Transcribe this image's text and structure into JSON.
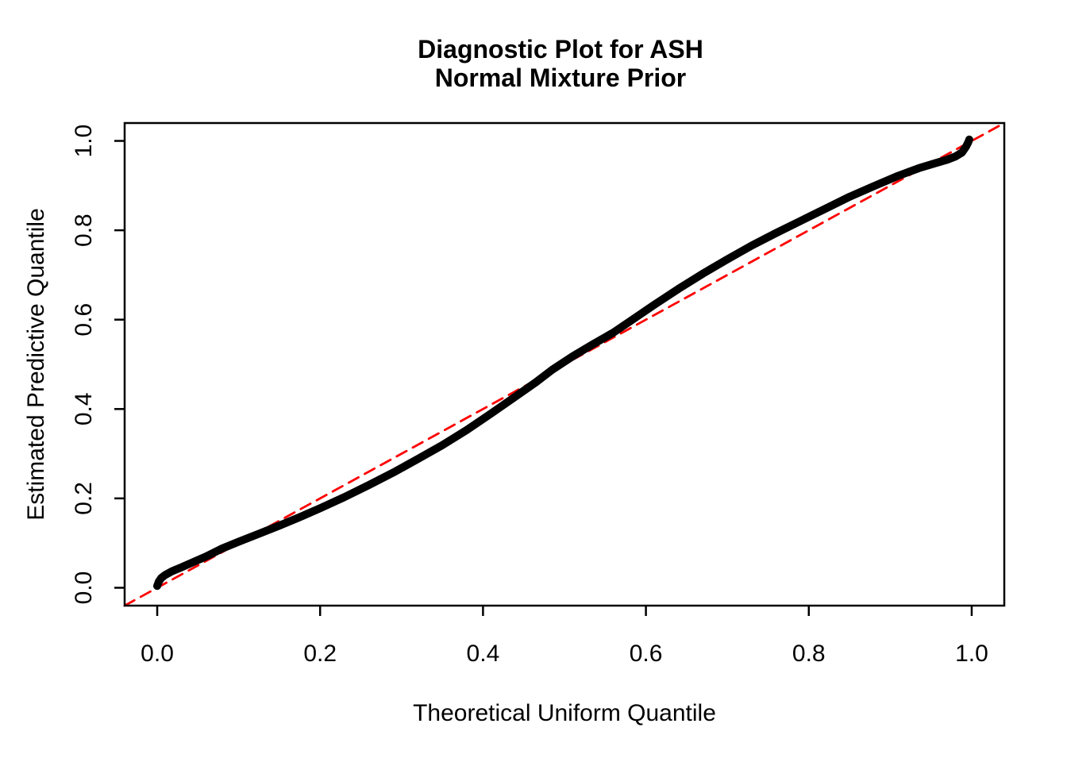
{
  "title": {
    "line1": "Diagnostic Plot for ASH",
    "line2": "Normal Mixture Prior"
  },
  "axes": {
    "x_label": "Theoretical Uniform Quantile",
    "y_label": "Estimated Predictive Quantile",
    "x_tick_labels": [
      "0.0",
      "0.2",
      "0.4",
      "0.6",
      "0.8",
      "1.0"
    ],
    "y_tick_labels": [
      "0.0",
      "0.2",
      "0.4",
      "0.6",
      "0.8",
      "1.0"
    ]
  },
  "colors": {
    "curve": "#000000",
    "reference_line": "#FF0000",
    "background": "#FFFFFF",
    "text": "#000000",
    "frame": "#000000"
  },
  "chart_data": {
    "type": "line",
    "title": "Diagnostic Plot for ASH\nNormal Mixture Prior",
    "xlabel": "Theoretical Uniform Quantile",
    "ylabel": "Estimated Predictive Quantile",
    "xlim": [
      -0.04,
      1.04
    ],
    "ylim": [
      -0.04,
      1.04
    ],
    "x_ticks": [
      0,
      0.2,
      0.4,
      0.6,
      0.8,
      1.0
    ],
    "y_ticks": [
      0,
      0.2,
      0.4,
      0.6,
      0.8,
      1.0
    ],
    "grid": false,
    "legend": false,
    "series": [
      {
        "name": "estimated predictive quantile vs theoretical uniform quantile (Q-Q curve)",
        "type": "line",
        "color": "#000000",
        "line_width": 10,
        "dash": null,
        "points": [
          [
            0.0,
            0.004
          ],
          [
            0.002,
            0.014
          ],
          [
            0.005,
            0.022
          ],
          [
            0.01,
            0.029
          ],
          [
            0.018,
            0.037
          ],
          [
            0.03,
            0.046
          ],
          [
            0.045,
            0.058
          ],
          [
            0.06,
            0.07
          ],
          [
            0.08,
            0.088
          ],
          [
            0.1,
            0.103
          ],
          [
            0.125,
            0.121
          ],
          [
            0.15,
            0.139
          ],
          [
            0.175,
            0.158
          ],
          [
            0.2,
            0.178
          ],
          [
            0.23,
            0.203
          ],
          [
            0.26,
            0.23
          ],
          [
            0.29,
            0.258
          ],
          [
            0.32,
            0.288
          ],
          [
            0.35,
            0.319
          ],
          [
            0.38,
            0.353
          ],
          [
            0.41,
            0.39
          ],
          [
            0.44,
            0.428
          ],
          [
            0.465,
            0.46
          ],
          [
            0.485,
            0.488
          ],
          [
            0.51,
            0.518
          ],
          [
            0.535,
            0.545
          ],
          [
            0.56,
            0.571
          ],
          [
            0.585,
            0.602
          ],
          [
            0.61,
            0.633
          ],
          [
            0.64,
            0.669
          ],
          [
            0.67,
            0.703
          ],
          [
            0.7,
            0.735
          ],
          [
            0.73,
            0.766
          ],
          [
            0.76,
            0.794
          ],
          [
            0.79,
            0.821
          ],
          [
            0.82,
            0.848
          ],
          [
            0.85,
            0.875
          ],
          [
            0.88,
            0.899
          ],
          [
            0.91,
            0.922
          ],
          [
            0.935,
            0.939
          ],
          [
            0.955,
            0.95
          ],
          [
            0.97,
            0.958
          ],
          [
            0.98,
            0.965
          ],
          [
            0.988,
            0.974
          ],
          [
            0.993,
            0.987
          ],
          [
            0.996,
            0.998
          ],
          [
            0.997,
            1.003
          ]
        ]
      },
      {
        "name": "y = x reference line",
        "type": "line",
        "color": "#FF0000",
        "line_width": 2.8,
        "dash": [
          14,
          9
        ],
        "points": [
          [
            -0.04,
            -0.04
          ],
          [
            1.04,
            1.04
          ]
        ]
      }
    ]
  }
}
